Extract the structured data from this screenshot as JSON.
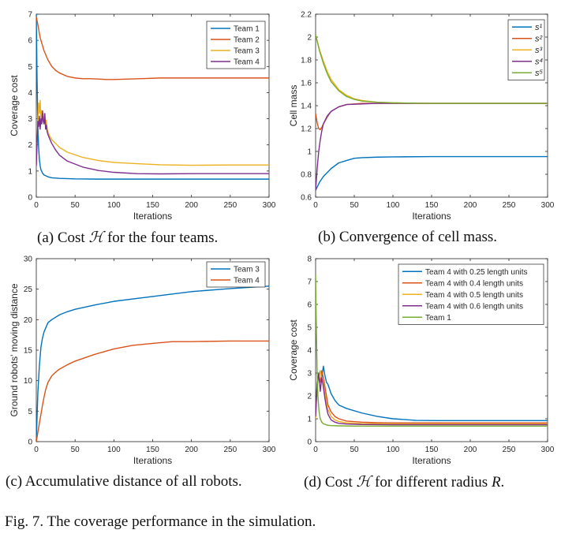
{
  "chart_data": [
    {
      "id": "a",
      "type": "line",
      "xlabel": "Iterations",
      "ylabel": "Coverage cost",
      "xlim": [
        0,
        300
      ],
      "ylim": [
        0,
        7
      ],
      "xticks": [
        0,
        50,
        100,
        150,
        200,
        250,
        300
      ],
      "yticks": [
        0,
        1,
        2,
        3,
        4,
        5,
        6,
        7
      ],
      "legend_position": "top-right",
      "series": [
        {
          "name": "Team 1",
          "color": "#0072BD",
          "x": [
            0,
            1,
            2,
            3,
            4,
            5,
            6,
            8,
            10,
            15,
            20,
            30,
            50,
            80,
            120,
            180,
            240,
            300
          ],
          "y": [
            7,
            4.5,
            2.8,
            1.9,
            1.45,
            1.2,
            1.05,
            0.92,
            0.85,
            0.78,
            0.74,
            0.72,
            0.7,
            0.69,
            0.69,
            0.69,
            0.69,
            0.69
          ]
        },
        {
          "name": "Team 2",
          "color": "#D95319",
          "x": [
            0,
            2,
            5,
            10,
            15,
            20,
            25,
            30,
            40,
            50,
            60,
            70,
            80,
            90,
            100,
            120,
            140,
            160,
            200,
            250,
            300
          ],
          "y": [
            6.9,
            6.6,
            6.1,
            5.6,
            5.25,
            5.0,
            4.85,
            4.75,
            4.62,
            4.56,
            4.53,
            4.53,
            4.52,
            4.5,
            4.5,
            4.52,
            4.54,
            4.56,
            4.56,
            4.56,
            4.56
          ]
        },
        {
          "name": "Team 3",
          "color": "#EDB120",
          "x": [
            0,
            2,
            3,
            4,
            5,
            6,
            7,
            8,
            9,
            10,
            11,
            12,
            13,
            14,
            15,
            17,
            20,
            25,
            30,
            40,
            60,
            80,
            100,
            130,
            160,
            200,
            250,
            300
          ],
          "y": [
            1.2,
            2.8,
            3.6,
            3.2,
            3.7,
            3.0,
            3.3,
            2.95,
            3.2,
            2.9,
            3.1,
            2.75,
            2.95,
            2.6,
            2.5,
            2.35,
            2.2,
            2.05,
            1.9,
            1.72,
            1.52,
            1.4,
            1.33,
            1.28,
            1.24,
            1.22,
            1.23,
            1.23
          ]
        },
        {
          "name": "Team 4",
          "color": "#7E2F8E",
          "x": [
            0,
            2,
            3,
            4,
            5,
            6,
            7,
            8,
            9,
            10,
            11,
            12,
            13,
            14,
            15,
            17,
            20,
            25,
            30,
            40,
            60,
            80,
            100,
            130,
            160,
            200,
            250,
            300
          ],
          "y": [
            1.2,
            2.9,
            2.7,
            3.1,
            2.6,
            3.0,
            2.8,
            3.3,
            2.9,
            2.8,
            3.2,
            2.6,
            2.75,
            2.5,
            2.4,
            2.25,
            2.05,
            1.8,
            1.6,
            1.38,
            1.15,
            1.02,
            0.95,
            0.9,
            0.89,
            0.9,
            0.9,
            0.9
          ]
        }
      ]
    },
    {
      "id": "b",
      "type": "line",
      "xlabel": "Iterations",
      "ylabel": "Cell mass",
      "xlim": [
        0,
        300
      ],
      "ylim": [
        0.6,
        2.2
      ],
      "xticks": [
        0,
        50,
        100,
        150,
        200,
        250,
        300
      ],
      "yticks": [
        0.6,
        0.8,
        1,
        1.2,
        1.4,
        1.6,
        1.8,
        2,
        2.2
      ],
      "legend_position": "top-right",
      "series": [
        {
          "name": "s¹",
          "color": "#0072BD",
          "x": [
            0,
            5,
            10,
            20,
            30,
            40,
            50,
            60,
            80,
            100,
            150,
            200,
            300
          ],
          "y": [
            0.66,
            0.73,
            0.78,
            0.85,
            0.9,
            0.92,
            0.94,
            0.945,
            0.95,
            0.952,
            0.955,
            0.955,
            0.955
          ]
        },
        {
          "name": "s²",
          "color": "#D95319",
          "x": [
            0,
            2,
            4,
            6,
            8,
            10,
            15,
            20,
            30,
            40,
            60,
            80,
            100,
            150,
            300
          ],
          "y": [
            1.33,
            1.25,
            1.2,
            1.19,
            1.21,
            1.24,
            1.3,
            1.35,
            1.39,
            1.41,
            1.42,
            1.42,
            1.42,
            1.42,
            1.42
          ]
        },
        {
          "name": "s³",
          "color": "#EDB120",
          "x": [
            0,
            5,
            10,
            15,
            20,
            30,
            40,
            50,
            60,
            80,
            100,
            150,
            300
          ],
          "y": [
            2.02,
            1.89,
            1.79,
            1.7,
            1.63,
            1.54,
            1.49,
            1.46,
            1.445,
            1.43,
            1.425,
            1.42,
            1.42
          ]
        },
        {
          "name": "s⁴",
          "color": "#7E2F8E",
          "x": [
            0,
            2,
            4,
            6,
            8,
            10,
            15,
            20,
            30,
            40,
            60,
            80,
            100,
            150,
            300
          ],
          "y": [
            0.66,
            0.85,
            1.0,
            1.1,
            1.18,
            1.24,
            1.31,
            1.35,
            1.39,
            1.41,
            1.415,
            1.42,
            1.42,
            1.42,
            1.42
          ]
        },
        {
          "name": "s⁵",
          "color": "#77AC30",
          "x": [
            0,
            5,
            10,
            15,
            20,
            30,
            40,
            50,
            60,
            80,
            100,
            150,
            300
          ],
          "y": [
            2.02,
            1.88,
            1.77,
            1.68,
            1.61,
            1.53,
            1.48,
            1.455,
            1.44,
            1.43,
            1.425,
            1.42,
            1.42
          ]
        }
      ]
    },
    {
      "id": "c",
      "type": "line",
      "xlabel": "Iterations",
      "ylabel": "Ground robots' moving distance",
      "xlim": [
        0,
        300
      ],
      "ylim": [
        0,
        30
      ],
      "xticks": [
        0,
        50,
        100,
        150,
        200,
        250,
        300
      ],
      "yticks": [
        0,
        5,
        10,
        15,
        20,
        25,
        30
      ],
      "legend_position": "top-right",
      "series": [
        {
          "name": "Team 3",
          "color": "#0072BD",
          "x": [
            0,
            1,
            2,
            4,
            6,
            8,
            10,
            15,
            20,
            30,
            40,
            50,
            75,
            100,
            150,
            200,
            250,
            300
          ],
          "y": [
            0,
            4,
            8,
            12.5,
            15.5,
            17,
            18,
            19.5,
            20,
            20.8,
            21.3,
            21.7,
            22.4,
            23,
            23.8,
            24.6,
            25.1,
            25.5
          ]
        },
        {
          "name": "Team 4",
          "color": "#D95319",
          "x": [
            0,
            2,
            4,
            6,
            8,
            10,
            12,
            15,
            20,
            25,
            30,
            40,
            50,
            75,
            100,
            125,
            150,
            175,
            200,
            250,
            300
          ],
          "y": [
            0,
            1.5,
            3,
            4.5,
            6,
            7.3,
            8.5,
            9.7,
            10.8,
            11.4,
            11.9,
            12.6,
            13.2,
            14.3,
            15.2,
            15.8,
            16.1,
            16.4,
            16.4,
            16.5,
            16.5
          ]
        }
      ]
    },
    {
      "id": "d",
      "type": "line",
      "xlabel": "Iterations",
      "ylabel": "Coverage cost",
      "xlim": [
        0,
        300
      ],
      "ylim": [
        0,
        8
      ],
      "xticks": [
        0,
        50,
        100,
        150,
        200,
        250,
        300
      ],
      "yticks": [
        0,
        1,
        2,
        3,
        4,
        5,
        6,
        7,
        8
      ],
      "legend_position": "top-right",
      "series": [
        {
          "name": "Team 4 with 0.25 length units",
          "color": "#0072BD",
          "x": [
            0,
            2,
            4,
            6,
            8,
            10,
            12,
            14,
            16,
            18,
            20,
            25,
            30,
            40,
            60,
            80,
            100,
            130,
            160,
            200,
            300
          ],
          "y": [
            1.2,
            2.6,
            2.9,
            3.1,
            2.8,
            3.3,
            2.9,
            2.6,
            2.5,
            2.3,
            2.1,
            1.8,
            1.6,
            1.45,
            1.25,
            1.1,
            1.0,
            0.93,
            0.92,
            0.92,
            0.92
          ]
        },
        {
          "name": "Team 4 with 0.4 length units",
          "color": "#D95319",
          "x": [
            0,
            2,
            4,
            6,
            8,
            10,
            12,
            14,
            16,
            20,
            25,
            30,
            40,
            60,
            80,
            100,
            150,
            200,
            300
          ],
          "y": [
            1.1,
            2.5,
            2.9,
            2.6,
            3.1,
            2.8,
            2.4,
            2.0,
            1.6,
            1.3,
            1.1,
            1.0,
            0.9,
            0.85,
            0.83,
            0.82,
            0.82,
            0.82,
            0.82
          ]
        },
        {
          "name": "Team 4 with 0.5 length units",
          "color": "#EDB120",
          "x": [
            0,
            2,
            4,
            6,
            8,
            10,
            12,
            14,
            16,
            20,
            25,
            30,
            40,
            60,
            100,
            150,
            300
          ],
          "y": [
            1.0,
            2.4,
            2.8,
            3.1,
            2.7,
            2.5,
            2.1,
            1.7,
            1.4,
            1.1,
            0.95,
            0.88,
            0.82,
            0.79,
            0.77,
            0.77,
            0.77
          ]
        },
        {
          "name": "Team 4 with 0.6 length units",
          "color": "#7E2F8E",
          "x": [
            0,
            2,
            4,
            6,
            8,
            10,
            12,
            14,
            16,
            20,
            25,
            30,
            40,
            60,
            100,
            150,
            300
          ],
          "y": [
            1.1,
            2.5,
            3.0,
            2.2,
            2.8,
            2.4,
            1.9,
            1.5,
            1.2,
            0.95,
            0.85,
            0.8,
            0.77,
            0.75,
            0.74,
            0.74,
            0.74
          ]
        },
        {
          "name": "Team 1",
          "color": "#77AC30",
          "x": [
            0,
            1,
            2,
            3,
            4,
            5,
            6,
            8,
            10,
            15,
            20,
            30,
            50,
            100,
            300
          ],
          "y": [
            7.3,
            4.8,
            3.0,
            2.0,
            1.5,
            1.2,
            1.0,
            0.85,
            0.78,
            0.72,
            0.7,
            0.69,
            0.68,
            0.68,
            0.68
          ]
        }
      ]
    }
  ],
  "captions": {
    "a": {
      "pre": "(a) Cost ",
      "sym": "ℋ",
      "post": " for the four teams."
    },
    "b": {
      "pre": "(b) Convergence of cell mass.",
      "sym": "",
      "post": ""
    },
    "c": {
      "pre": "(c) Accumulative distance of all robots.",
      "sym": "",
      "post": ""
    },
    "d": {
      "pre": "(d) Cost ",
      "sym": "ℋ",
      "post": " for different radius ",
      "var": "R",
      "end": "."
    }
  },
  "figure_caption": "Fig. 7.  The coverage performance in the simulation."
}
